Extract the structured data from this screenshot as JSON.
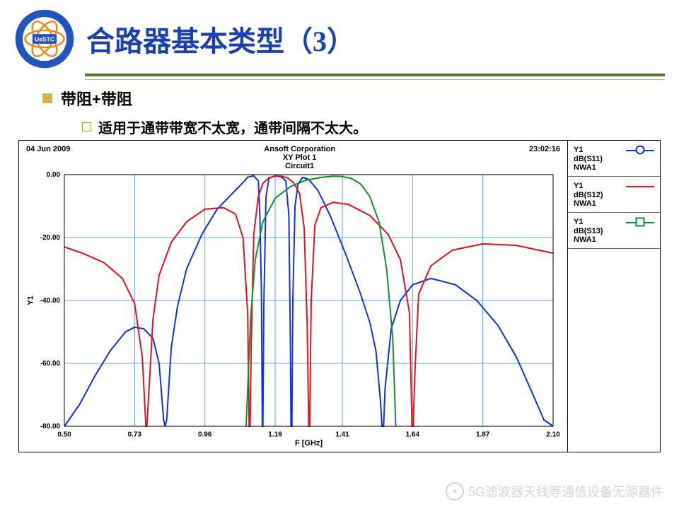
{
  "title": "合路器基本类型（3）",
  "bullet1": "带阻+带阻",
  "bullet2": "适用于通带带宽不太宽，通带间隔不太大。",
  "watermark": "5G滤波器天线等通信设备无源器件",
  "plot": {
    "date": "04 Jun 2009",
    "company": "Ansoft Corporation",
    "plotname": "XY Plot 1",
    "circuit": "Circuit1",
    "time": "23:02:16",
    "xlabel": "F [GHz]",
    "ylabel": "Y1",
    "xlim": [
      0.5,
      2.1
    ],
    "ylim": [
      -80.0,
      0.0
    ],
    "xticks": [
      0.5,
      0.73,
      0.96,
      1.19,
      1.41,
      1.64,
      1.87,
      2.1
    ],
    "yticks": [
      0.0,
      -20.0,
      -40.0,
      -60.0,
      -80.0
    ],
    "grid_color": "#5aa0f0",
    "grid_width": 1,
    "line_width": 2,
    "background": "#ffffff",
    "series": [
      {
        "name": "dB(S11)",
        "source": "NWA1",
        "legend_label": "Y1",
        "color": "#1030e0",
        "marker": "circle",
        "points": [
          [
            0.5,
            -80
          ],
          [
            0.55,
            -73
          ],
          [
            0.6,
            -64
          ],
          [
            0.65,
            -56
          ],
          [
            0.7,
            -50
          ],
          [
            0.73,
            -48.5
          ],
          [
            0.76,
            -49
          ],
          [
            0.79,
            -52
          ],
          [
            0.81,
            -60
          ],
          [
            0.825,
            -78
          ],
          [
            0.83,
            -80
          ],
          [
            0.835,
            -78
          ],
          [
            0.85,
            -55
          ],
          [
            0.87,
            -42
          ],
          [
            0.9,
            -30
          ],
          [
            0.95,
            -19
          ],
          [
            1.0,
            -11
          ],
          [
            1.05,
            -6
          ],
          [
            1.09,
            -2
          ],
          [
            1.1,
            -0.8
          ],
          [
            1.12,
            -0.4
          ],
          [
            1.135,
            -2
          ],
          [
            1.14,
            -13
          ],
          [
            1.145,
            -37
          ],
          [
            1.148,
            -80
          ],
          [
            1.15,
            -80
          ],
          [
            1.153,
            -42
          ],
          [
            1.16,
            -7
          ],
          [
            1.17,
            -1.2
          ],
          [
            1.19,
            -0.4
          ],
          [
            1.21,
            -0.7
          ],
          [
            1.225,
            -2
          ],
          [
            1.235,
            -13
          ],
          [
            1.24,
            -55
          ],
          [
            1.242,
            -80
          ],
          [
            1.245,
            -80
          ],
          [
            1.248,
            -40
          ],
          [
            1.255,
            -10
          ],
          [
            1.265,
            -3
          ],
          [
            1.28,
            -0.9
          ],
          [
            1.3,
            -1.5
          ],
          [
            1.33,
            -5
          ],
          [
            1.37,
            -13
          ],
          [
            1.42,
            -25
          ],
          [
            1.47,
            -38
          ],
          [
            1.5,
            -47
          ],
          [
            1.52,
            -56
          ],
          [
            1.535,
            -72
          ],
          [
            1.54,
            -80
          ],
          [
            1.545,
            -80
          ],
          [
            1.55,
            -68
          ],
          [
            1.57,
            -49
          ],
          [
            1.6,
            -40
          ],
          [
            1.64,
            -35
          ],
          [
            1.7,
            -33
          ],
          [
            1.78,
            -35
          ],
          [
            1.85,
            -40
          ],
          [
            1.92,
            -48
          ],
          [
            1.98,
            -58
          ],
          [
            2.03,
            -69
          ],
          [
            2.07,
            -78
          ],
          [
            2.1,
            -80
          ]
        ]
      },
      {
        "name": "dB(S12)",
        "source": "NWA1",
        "legend_label": "Y1",
        "color": "#e01020",
        "marker": "none",
        "points": [
          [
            0.5,
            -23
          ],
          [
            0.56,
            -25
          ],
          [
            0.63,
            -28
          ],
          [
            0.69,
            -33
          ],
          [
            0.73,
            -41
          ],
          [
            0.755,
            -58
          ],
          [
            0.767,
            -80
          ],
          [
            0.77,
            -80
          ],
          [
            0.775,
            -72
          ],
          [
            0.79,
            -46
          ],
          [
            0.81,
            -32
          ],
          [
            0.85,
            -21.5
          ],
          [
            0.9,
            -15
          ],
          [
            0.96,
            -11
          ],
          [
            1.02,
            -10.5
          ],
          [
            1.06,
            -12.5
          ],
          [
            1.085,
            -20
          ],
          [
            1.1,
            -44
          ],
          [
            1.105,
            -80
          ],
          [
            1.108,
            -80
          ],
          [
            1.112,
            -52
          ],
          [
            1.12,
            -19
          ],
          [
            1.135,
            -7
          ],
          [
            1.15,
            -2.8
          ],
          [
            1.17,
            -1.0
          ],
          [
            1.19,
            -0.5
          ],
          [
            1.21,
            -0.5
          ],
          [
            1.23,
            -1.0
          ],
          [
            1.25,
            -2.5
          ],
          [
            1.27,
            -6
          ],
          [
            1.285,
            -17
          ],
          [
            1.295,
            -48
          ],
          [
            1.3,
            -80
          ],
          [
            1.303,
            -80
          ],
          [
            1.308,
            -40
          ],
          [
            1.32,
            -16
          ],
          [
            1.34,
            -10.5
          ],
          [
            1.38,
            -8.8
          ],
          [
            1.43,
            -9.5
          ],
          [
            1.5,
            -13
          ],
          [
            1.56,
            -19
          ],
          [
            1.6,
            -27
          ],
          [
            1.63,
            -44
          ],
          [
            1.638,
            -80
          ],
          [
            1.642,
            -80
          ],
          [
            1.648,
            -62
          ],
          [
            1.66,
            -38
          ],
          [
            1.7,
            -29
          ],
          [
            1.77,
            -24
          ],
          [
            1.87,
            -22
          ],
          [
            1.98,
            -22.5
          ],
          [
            2.1,
            -25
          ]
        ]
      },
      {
        "name": "dB(S13)",
        "source": "NWA1",
        "legend_label": "Y1",
        "color": "#109030",
        "marker": "square",
        "points": [
          [
            1.095,
            -80
          ],
          [
            1.1,
            -68
          ],
          [
            1.11,
            -45
          ],
          [
            1.125,
            -27
          ],
          [
            1.15,
            -15
          ],
          [
            1.19,
            -7.5
          ],
          [
            1.24,
            -3.8
          ],
          [
            1.29,
            -1.8
          ],
          [
            1.34,
            -0.9
          ],
          [
            1.38,
            -0.5
          ],
          [
            1.41,
            -0.6
          ],
          [
            1.44,
            -1.2
          ],
          [
            1.47,
            -3
          ],
          [
            1.5,
            -7
          ],
          [
            1.53,
            -15
          ],
          [
            1.555,
            -30
          ],
          [
            1.575,
            -52
          ],
          [
            1.585,
            -80
          ]
        ]
      }
    ]
  },
  "logo_colors": {
    "ring": "#2454c0",
    "inner": "#e09020",
    "text": "#ffffff"
  }
}
